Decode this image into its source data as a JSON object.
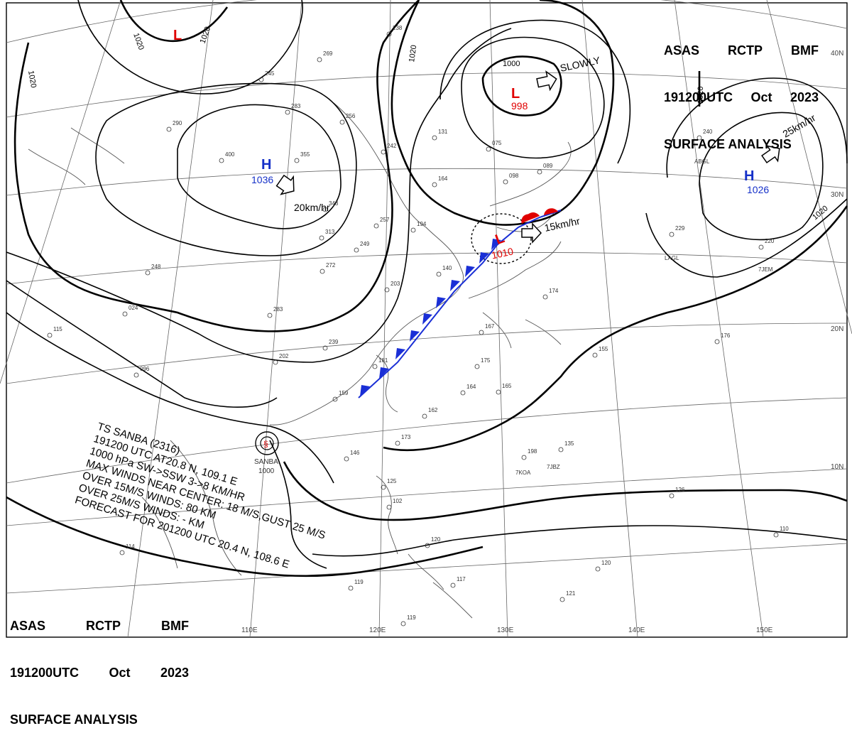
{
  "header_top_right": {
    "line1": [
      "ASAS",
      "RCTP",
      "BMF"
    ],
    "line2": [
      "191200UTC",
      "Oct",
      "2023"
    ],
    "line3": "SURFACE ANALYSIS"
  },
  "header_bottom_left": {
    "line1": [
      "ASAS",
      "RCTP",
      "BMF"
    ],
    "line2": [
      "191200UTC",
      "Oct",
      "2023"
    ],
    "line3": "SURFACE ANALYSIS"
  },
  "longitudes": [
    "110E",
    "120E",
    "130E",
    "140E",
    "150E"
  ],
  "latitudes": [
    "40N",
    "30N",
    "20N",
    "10N"
  ],
  "isobar_labels": [
    "1020",
    "1020",
    "1020",
    "1020",
    "1020",
    "1020",
    "1000"
  ],
  "systems": {
    "low_north": {
      "letter": "L"
    },
    "high_center": {
      "letter": "H",
      "value": "1036",
      "motion": "20km/hr"
    },
    "low_okhotsk": {
      "letter": "L",
      "value": "998",
      "motion": "SLOWLY"
    },
    "high_east": {
      "letter": "H",
      "value": "1026",
      "motion": "25km/hr"
    },
    "low_front": {
      "letter": "L",
      "value": "1010",
      "motion": "15km/hr"
    },
    "storm": {
      "name": "SANBA",
      "value": "1000"
    }
  },
  "storm_info": {
    "line1": "TS  SANBA (2316)",
    "line2": "191200 UTC  AT20.8 N, 109.1 E",
    "line3": "1000 hPa  SW->SSW  3->8 KM/HR",
    "line4": "MAX WINDS NEAR CENTER: 18 M/S,GUST 25 M/S",
    "line5": "OVER 15M/S WINDS: 80 KM",
    "line6": "OVER 25M/S WINDS: - KM",
    "line7": "FORECAST FOR 201200 UTC 20.4 N, 108.6 E"
  },
  "station_labels": [
    "238",
    "269",
    "245",
    "283",
    "256",
    "290",
    "400",
    "355",
    "343",
    "313",
    "242",
    "131",
    "075",
    "164",
    "098",
    "089",
    "240",
    "229",
    "220",
    "257",
    "194",
    "249",
    "140",
    "203",
    "248",
    "024",
    "115",
    "283",
    "272",
    "096",
    "239",
    "202",
    "181",
    "159",
    "167",
    "175",
    "164",
    "165",
    "162",
    "155",
    "176",
    "146",
    "173",
    "198",
    "135",
    "126",
    "110",
    "125",
    "102",
    "120",
    "120",
    "117",
    "119",
    "121",
    "119",
    "114",
    "174"
  ],
  "station_codes": [
    "7KOA",
    "7JBZ",
    "7JEM",
    "ABGL",
    "LAGL"
  ],
  "colors": {
    "low": "#e00000",
    "high": "#1530c8",
    "front_cold": "#1a2fd6",
    "front_warm": "#e00000",
    "line": "#000000"
  }
}
